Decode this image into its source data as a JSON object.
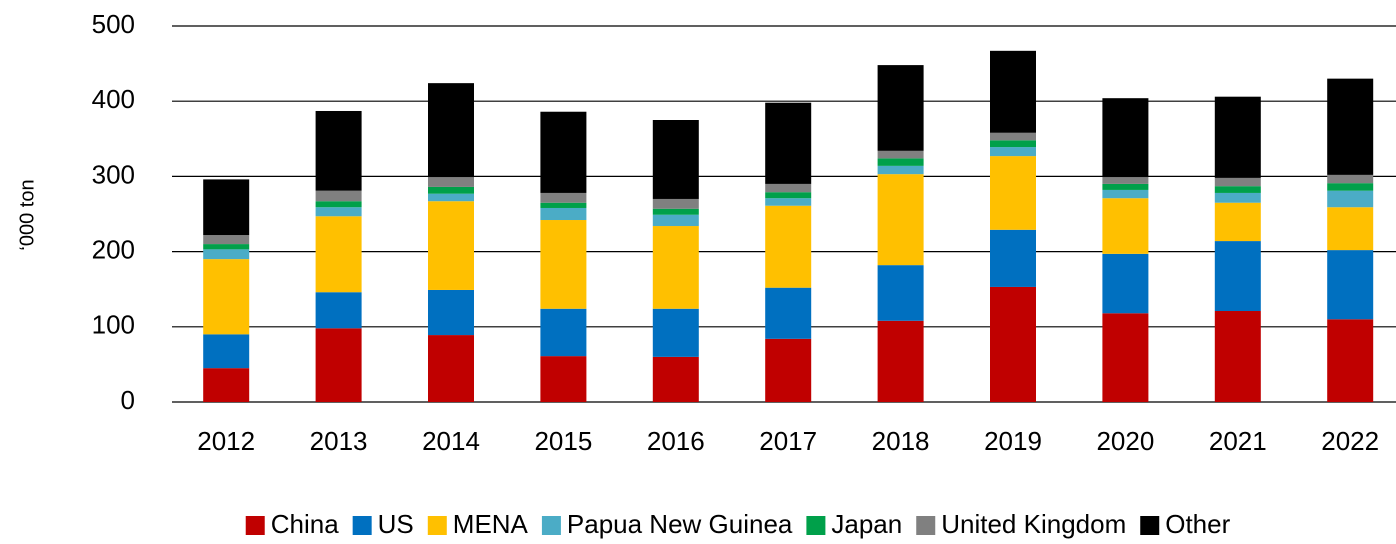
{
  "chart_data": {
    "type": "stacked_bar",
    "y_label": "‘000 ton",
    "categories": [
      "2012",
      "2013",
      "2014",
      "2015",
      "2016",
      "2017",
      "2018",
      "2019",
      "2020",
      "2021",
      "2022"
    ],
    "series": [
      {
        "name": "China",
        "color": "#c00000",
        "values": [
          45,
          98,
          89,
          61,
          60,
          84,
          108,
          153,
          118,
          121,
          110
        ]
      },
      {
        "name": "US",
        "color": "#0070c0",
        "values": [
          45,
          48,
          60,
          63,
          64,
          68,
          74,
          76,
          79,
          93,
          92
        ]
      },
      {
        "name": "MENA",
        "color": "#ffc000",
        "values": [
          100,
          101,
          118,
          118,
          110,
          109,
          121,
          98,
          74,
          51,
          57
        ]
      },
      {
        "name": "Papua New Guinea",
        "color": "#4bacc6",
        "values": [
          13,
          12,
          10,
          16,
          15,
          10,
          11,
          12,
          11,
          13,
          22
        ]
      },
      {
        "name": "Japan",
        "color": "#00a04a",
        "values": [
          7,
          8,
          9,
          7,
          8,
          8,
          10,
          9,
          8,
          9,
          10
        ]
      },
      {
        "name": "United Kingdom",
        "color": "#808080",
        "values": [
          12,
          14,
          13,
          13,
          13,
          11,
          10,
          10,
          9,
          11,
          11
        ]
      },
      {
        "name": "Other",
        "color": "#000000",
        "values": [
          74,
          106,
          125,
          108,
          105,
          108,
          114,
          109,
          105,
          108,
          128
        ]
      }
    ],
    "ylim": [
      0,
      500
    ],
    "yticks": [
      0,
      100,
      200,
      300,
      400,
      500
    ],
    "grid": true,
    "legend": "bottom"
  }
}
